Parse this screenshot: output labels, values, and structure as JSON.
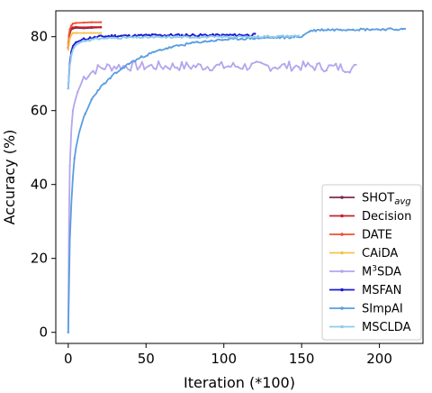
{
  "chart_data": {
    "type": "line",
    "xlabel": "Iteration (*100)",
    "ylabel": "Accuracy (%)",
    "xlim": [
      -8,
      228
    ],
    "ylim": [
      -3,
      87
    ],
    "xticks": [
      0,
      50,
      100,
      150,
      200
    ],
    "yticks": [
      0,
      20,
      40,
      60,
      80
    ],
    "grid": false,
    "legend_position": "lower-right",
    "series": [
      {
        "name": "SHOTavg",
        "legend_main": "SHOT",
        "legend_sub": "avg",
        "color": "#7b2a4f",
        "style": "flat",
        "x_end": 21,
        "points": [
          [
            0,
            77
          ],
          [
            0.5,
            79.5
          ],
          [
            1,
            81
          ],
          [
            2,
            82
          ],
          [
            3,
            82.2
          ],
          [
            5,
            82.4
          ],
          [
            10,
            82.3
          ],
          [
            15,
            82.4
          ],
          [
            21,
            82.5
          ]
        ]
      },
      {
        "name": "Decision",
        "legend_main": "Decision",
        "color": "#c62030",
        "style": "flat",
        "points": [
          [
            0,
            77
          ],
          [
            0.5,
            80
          ],
          [
            1,
            81.5
          ],
          [
            2,
            82.3
          ],
          [
            3,
            82.5
          ],
          [
            5,
            82.6
          ],
          [
            10,
            82.5
          ],
          [
            15,
            82.6
          ],
          [
            21,
            82.6
          ]
        ]
      },
      {
        "name": "DATE",
        "legend_main": "DATE",
        "color": "#ef5030",
        "style": "flat",
        "points": [
          [
            0,
            77
          ],
          [
            0.5,
            80.5
          ],
          [
            1,
            82
          ],
          [
            2,
            83
          ],
          [
            3,
            83.5
          ],
          [
            5,
            83.7
          ],
          [
            10,
            83.8
          ],
          [
            15,
            83.9
          ],
          [
            21,
            83.9
          ]
        ]
      },
      {
        "name": "CAiDA",
        "legend_main": "CAiDA",
        "color": "#f6c24a",
        "style": "flat",
        "points": [
          [
            0,
            76.5
          ],
          [
            0.5,
            78
          ],
          [
            1,
            79.5
          ],
          [
            2,
            80.5
          ],
          [
            3,
            81
          ],
          [
            5,
            81
          ],
          [
            10,
            81
          ],
          [
            15,
            81
          ],
          [
            21,
            81
          ]
        ]
      },
      {
        "name": "M3SDA",
        "legend_main": "M",
        "legend_sup": "3",
        "legend_rest": "SDA",
        "color": "#b4a6ee",
        "style": "noisy",
        "amp": 1.3,
        "step": 1.5,
        "seed": 7,
        "points": [
          [
            0,
            0
          ],
          [
            0.5,
            30
          ],
          [
            1,
            45
          ],
          [
            2,
            55
          ],
          [
            3,
            60
          ],
          [
            4,
            62
          ],
          [
            6,
            65
          ],
          [
            8,
            67
          ],
          [
            10,
            69
          ],
          [
            15,
            70.5
          ],
          [
            20,
            71.5
          ],
          [
            30,
            72
          ],
          [
            60,
            72
          ],
          [
            100,
            72
          ],
          [
            150,
            72
          ],
          [
            186,
            71.5
          ]
        ]
      },
      {
        "name": "MSFAN",
        "legend_main": "MSFAN",
        "color": "#1a1ad6",
        "style": "noisy",
        "amp": 0.35,
        "step": 1,
        "seed": 11,
        "points": [
          [
            0,
            66
          ],
          [
            1,
            73
          ],
          [
            2,
            76
          ],
          [
            3,
            77.5
          ],
          [
            5,
            78.5
          ],
          [
            8,
            79
          ],
          [
            12,
            79.5
          ],
          [
            20,
            80
          ],
          [
            30,
            80.2
          ],
          [
            60,
            80.4
          ],
          [
            100,
            80.4
          ],
          [
            120,
            80.5
          ]
        ]
      },
      {
        "name": "SImpAI",
        "legend_main": "SImpAI",
        "color": "#5a9de0",
        "style": "noisy",
        "amp": 0.3,
        "step": 1,
        "seed": 23,
        "points": [
          [
            0,
            0
          ],
          [
            1,
            25
          ],
          [
            2,
            35
          ],
          [
            3,
            42
          ],
          [
            4,
            47
          ],
          [
            5,
            50
          ],
          [
            7,
            54
          ],
          [
            10,
            58
          ],
          [
            15,
            63
          ],
          [
            20,
            66
          ],
          [
            30,
            70
          ],
          [
            40,
            73
          ],
          [
            50,
            75
          ],
          [
            60,
            76.5
          ],
          [
            70,
            77.5
          ],
          [
            80,
            78.3
          ],
          [
            90,
            78.8
          ],
          [
            100,
            79.2
          ],
          [
            120,
            79.6
          ],
          [
            140,
            79.8
          ],
          [
            150,
            80
          ],
          [
            155,
            81.5
          ],
          [
            160,
            81.8
          ],
          [
            180,
            82
          ],
          [
            200,
            82
          ],
          [
            217,
            82
          ]
        ]
      },
      {
        "name": "MSCLDA",
        "legend_main": "MSCLDA",
        "color": "#8ecbea",
        "style": "noisy",
        "amp": 0.25,
        "step": 1,
        "seed": 31,
        "points": [
          [
            0,
            66
          ],
          [
            1,
            72
          ],
          [
            2,
            75
          ],
          [
            3,
            76.5
          ],
          [
            5,
            77.8
          ],
          [
            8,
            78.5
          ],
          [
            12,
            79
          ],
          [
            20,
            79.5
          ],
          [
            40,
            79.8
          ],
          [
            80,
            79.9
          ],
          [
            120,
            80
          ],
          [
            148,
            80.2
          ]
        ]
      }
    ]
  }
}
